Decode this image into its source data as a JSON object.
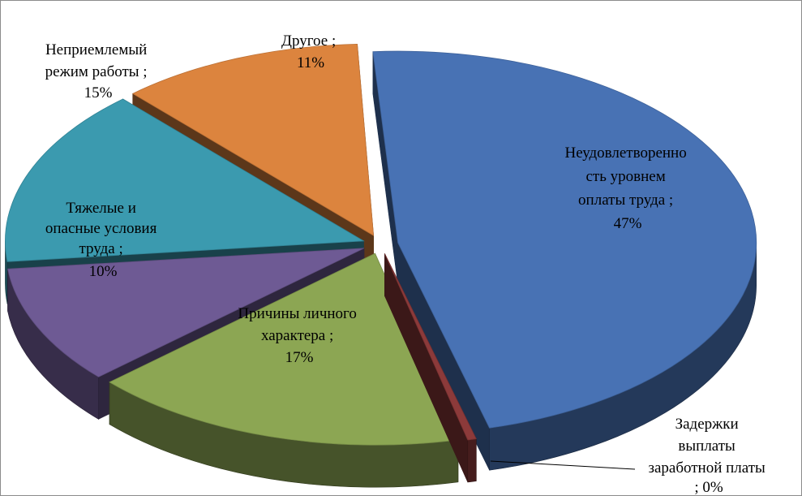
{
  "chart_data": {
    "type": "pie",
    "style": "3d-exploded",
    "title": "",
    "slices": [
      {
        "key": "pay",
        "label_lines": [
          "Неудовлетворенно",
          "сть уровнем",
          "оплаты труда ;",
          "47%"
        ],
        "value": 47,
        "color": "#4872B4"
      },
      {
        "key": "delay",
        "label_lines": [
          "Задержки",
          "выплаты",
          "заработной платы",
          "; 0%"
        ],
        "value": 0,
        "color": "#8C3A3A"
      },
      {
        "key": "personal",
        "label_lines": [
          "Причины личного",
          "характера ;",
          "17%"
        ],
        "value": 17,
        "color": "#8CA653"
      },
      {
        "key": "hard",
        "label_lines": [
          "Тяжелые и",
          "опасные условия",
          "труда ;",
          "10%"
        ],
        "value": 10,
        "color": "#6E5A94"
      },
      {
        "key": "mode",
        "label_lines": [
          "Неприемлемый",
          "режим работы ;",
          "15%"
        ],
        "value": 15,
        "color": "#3B9AAF"
      },
      {
        "key": "other",
        "label_lines": [
          "Другое ;",
          "11%"
        ],
        "value": 11,
        "color": "#DC843E"
      }
    ]
  }
}
